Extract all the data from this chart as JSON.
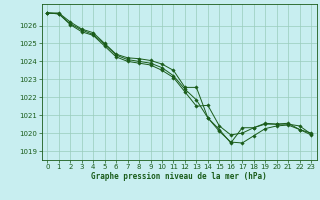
{
  "title": "Graphe pression niveau de la mer (hPa)",
  "background_color": "#c8eef0",
  "grid_color": "#99ccbb",
  "line_color": "#1a5c1a",
  "xlim": [
    -0.5,
    23.5
  ],
  "ylim": [
    1018.5,
    1027.2
  ],
  "yticks": [
    1019,
    1020,
    1021,
    1022,
    1023,
    1024,
    1025,
    1026
  ],
  "xticks": [
    0,
    1,
    2,
    3,
    4,
    5,
    6,
    7,
    8,
    9,
    10,
    11,
    12,
    13,
    14,
    15,
    16,
    17,
    18,
    19,
    20,
    21,
    22,
    23
  ],
  "series": [
    [
      1026.7,
      1026.7,
      1026.2,
      1025.8,
      1025.6,
      1025.0,
      1024.4,
      1024.2,
      1024.15,
      1024.05,
      1023.85,
      1023.5,
      1022.55,
      1022.55,
      1020.85,
      1020.2,
      1019.45,
      1020.3,
      1020.3,
      1020.5,
      1020.5,
      1020.5,
      1020.4,
      1019.95
    ],
    [
      1026.7,
      1026.65,
      1026.1,
      1025.75,
      1025.5,
      1024.95,
      1024.35,
      1024.1,
      1024.0,
      1023.9,
      1023.65,
      1023.2,
      1022.45,
      1021.85,
      1020.85,
      1020.1,
      1019.5,
      1019.45,
      1019.85,
      1020.25,
      1020.4,
      1020.45,
      1020.2,
      1019.9
    ],
    [
      1026.7,
      1026.65,
      1026.05,
      1025.65,
      1025.45,
      1024.85,
      1024.25,
      1024.0,
      1023.9,
      1023.8,
      1023.5,
      1023.1,
      1022.3,
      1021.5,
      1021.55,
      1020.4,
      1019.9,
      1020.0,
      1020.3,
      1020.55,
      1020.5,
      1020.55,
      1020.2,
      1020.0
    ]
  ]
}
